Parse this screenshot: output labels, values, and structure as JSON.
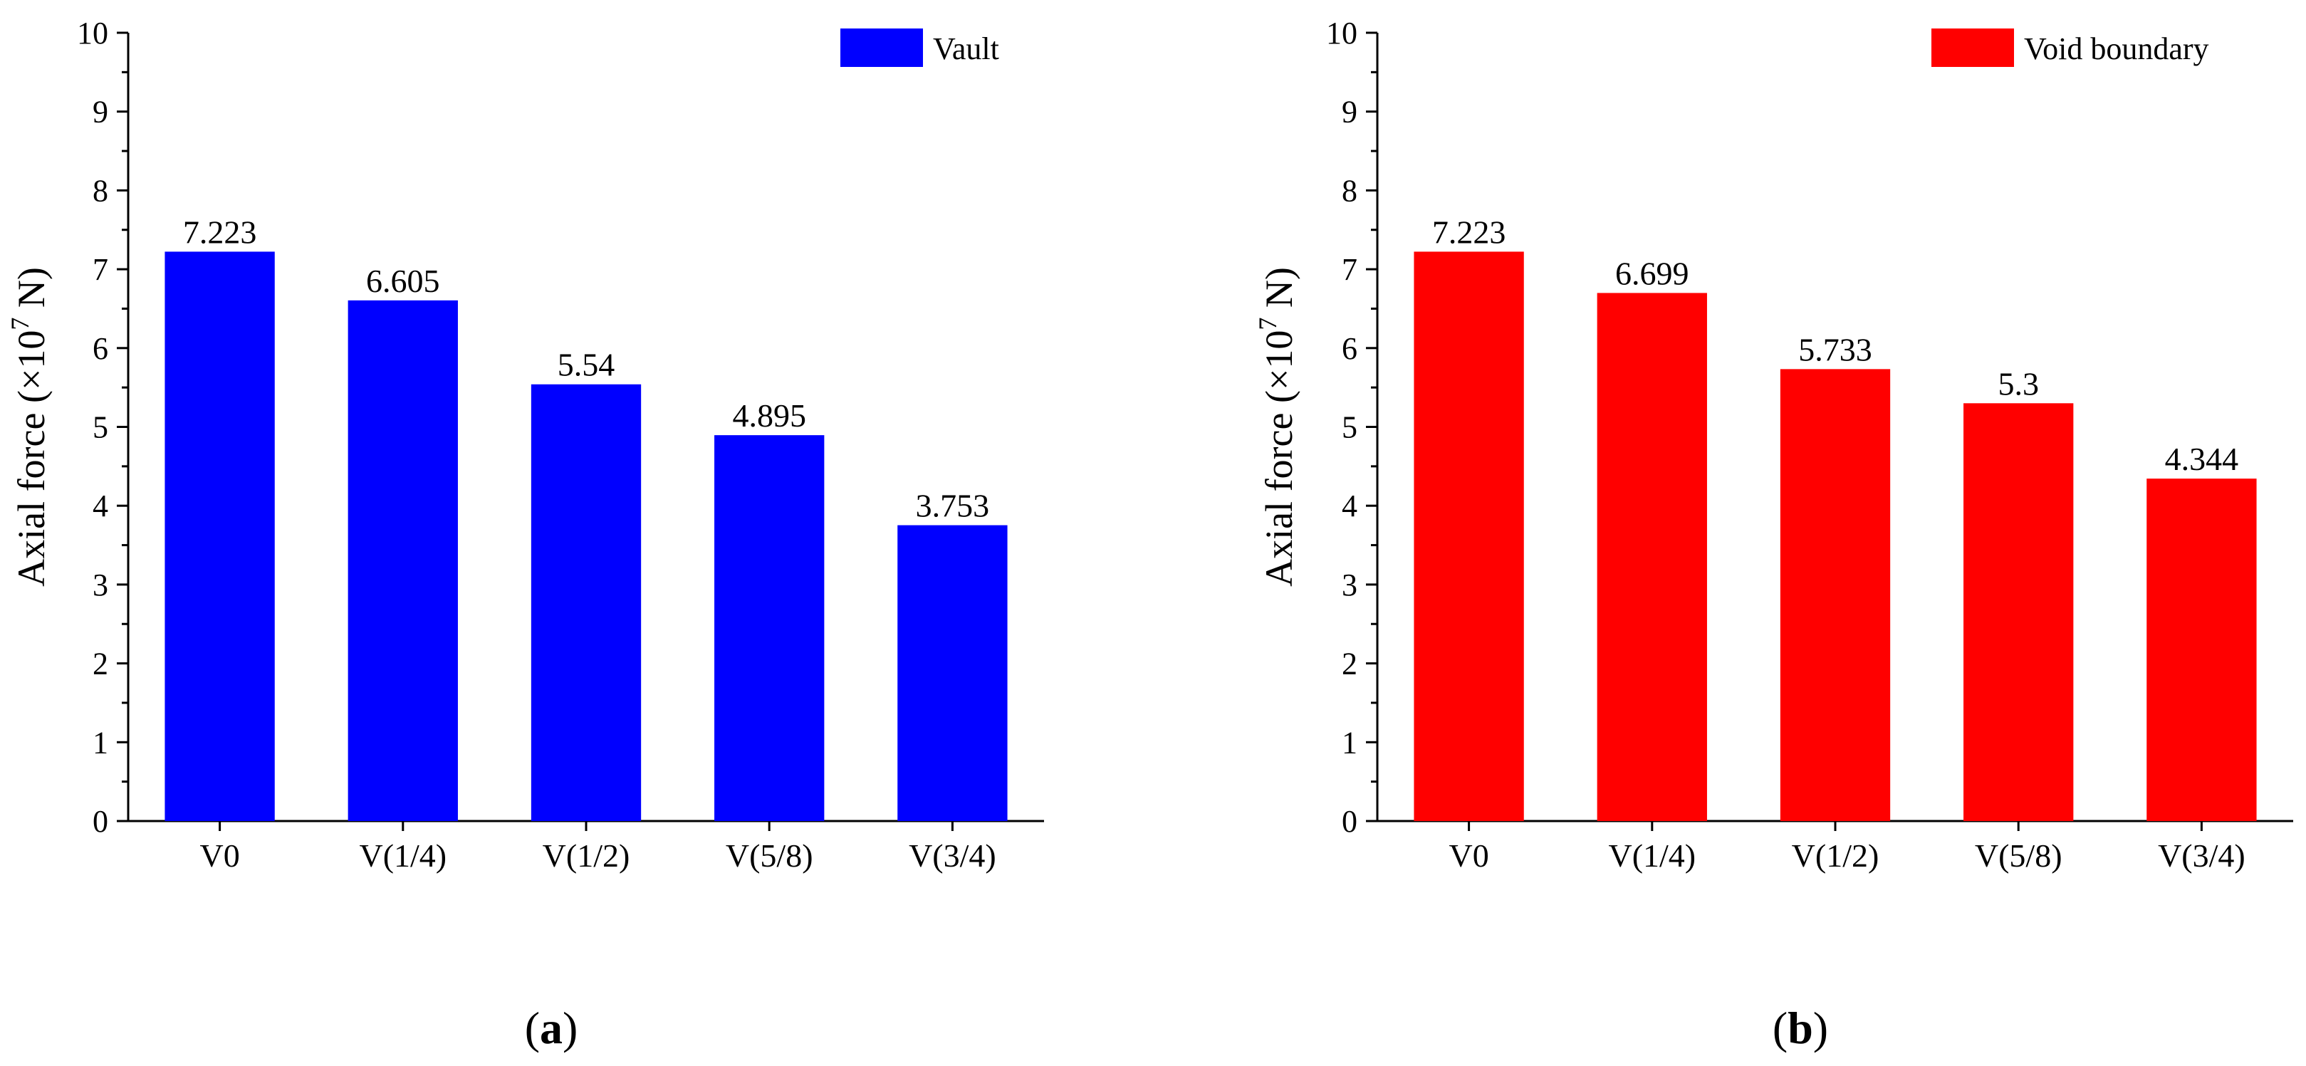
{
  "chart_data": [
    {
      "type": "bar",
      "panel": "a",
      "categories": [
        "V0",
        "V(1/4)",
        "V(1/2)",
        "V(5/8)",
        "V(3/4)"
      ],
      "series": [
        {
          "name": "Vault",
          "color": "#0000ff",
          "values": [
            7.223,
            6.605,
            5.54,
            4.895,
            3.753
          ],
          "labels": [
            "7.223",
            "6.605",
            "5.54",
            "4.895",
            "3.753"
          ]
        }
      ],
      "ylabel_main": "Axial force (×10",
      "ylabel_exp": "7",
      "ylabel_unit": " N)",
      "xlabel": "",
      "ylim": [
        0,
        10
      ],
      "yticks": [
        "0",
        "1",
        "2",
        "3",
        "4",
        "5",
        "6",
        "7",
        "8",
        "9",
        "10"
      ],
      "legend_position": "top-right",
      "grid": false
    },
    {
      "type": "bar",
      "panel": "b",
      "categories": [
        "V0",
        "V(1/4)",
        "V(1/2)",
        "V(5/8)",
        "V(3/4)"
      ],
      "series": [
        {
          "name": "Void boundary",
          "color": "#ff0000",
          "values": [
            7.223,
            6.699,
            5.733,
            5.3,
            4.344
          ],
          "labels": [
            "7.223",
            "6.699",
            "5.733",
            "5.3",
            "4.344"
          ]
        }
      ],
      "ylabel_main": "Axial force (×10",
      "ylabel_exp": "7",
      "ylabel_unit": " N)",
      "xlabel": "",
      "ylim": [
        0,
        10
      ],
      "yticks": [
        "0",
        "1",
        "2",
        "3",
        "4",
        "5",
        "6",
        "7",
        "8",
        "9",
        "10"
      ],
      "legend_position": "top-right",
      "grid": false
    }
  ],
  "panel_labels": {
    "a": {
      "open": "(",
      "letter": "a",
      "close": ")"
    },
    "b": {
      "open": "(",
      "letter": "b",
      "close": ")"
    }
  }
}
